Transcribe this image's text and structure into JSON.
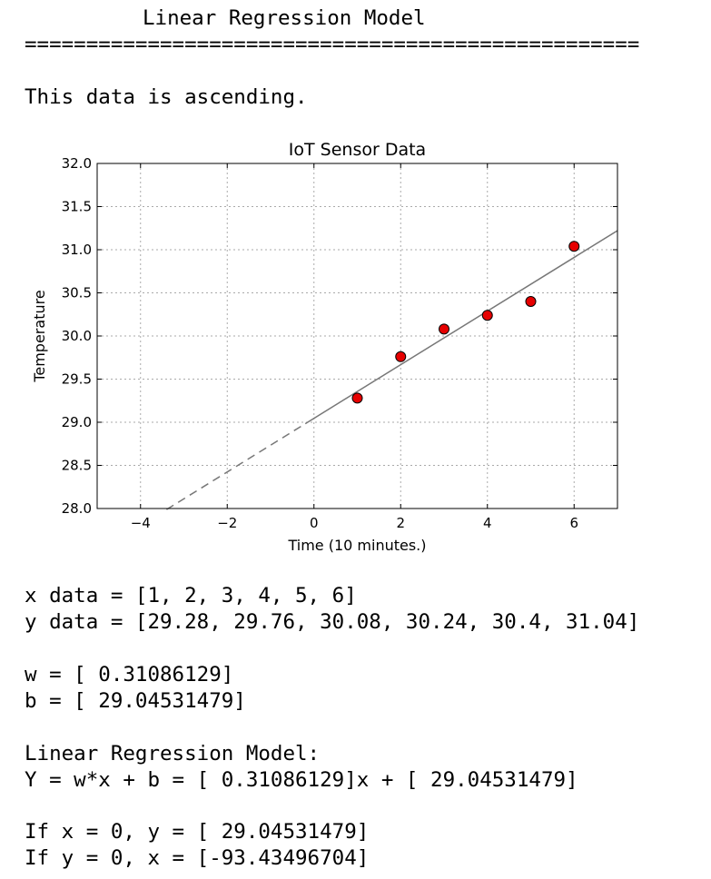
{
  "heading": "Linear Regression Model",
  "separator": "==================================================",
  "status": "This data is ascending.",
  "chart_data": {
    "type": "scatter",
    "title": "IoT Sensor Data",
    "xlabel": "Time (10 minutes.)",
    "ylabel": "Temperature",
    "xlim": [
      -5,
      7
    ],
    "ylim": [
      28.0,
      32.0
    ],
    "x_ticks": [
      -4,
      -2,
      0,
      2,
      4,
      6
    ],
    "x_tick_labels": [
      "−4",
      "−2",
      "0",
      "2",
      "4",
      "6"
    ],
    "y_ticks": [
      28.0,
      28.5,
      29.0,
      29.5,
      30.0,
      30.5,
      31.0,
      31.5,
      32.0
    ],
    "y_tick_labels": [
      "28.0",
      "28.5",
      "29.0",
      "29.5",
      "30.0",
      "30.5",
      "31.0",
      "31.5",
      "32.0"
    ],
    "grid": true,
    "points": {
      "x": [
        1,
        2,
        3,
        4,
        5,
        6
      ],
      "y": [
        29.28,
        29.76,
        30.08,
        30.24,
        30.4,
        31.04
      ],
      "color": "#e60000"
    },
    "fit_line": {
      "slope": 0.31086129,
      "intercept": 29.04531479,
      "solid_range": [
        -0.2,
        7
      ],
      "dashed_range": [
        -3.4,
        -0.2
      ],
      "color": "#777777"
    }
  },
  "text_output": {
    "x_data": "x data = [1, 2, 3, 4, 5, 6]",
    "y_data": "y data = [29.28, 29.76, 30.08, 30.24, 30.4, 31.04]",
    "w": "w = [ 0.31086129]",
    "b": "b = [ 29.04531479]",
    "model_title": "Linear Regression Model:",
    "model_eq": "Y = w*x + b = [ 0.31086129]x + [ 29.04531479]",
    "if_x": "If x = 0, y = [ 29.04531479]",
    "if_y": "If y = 0, x = [-93.43496704]"
  }
}
